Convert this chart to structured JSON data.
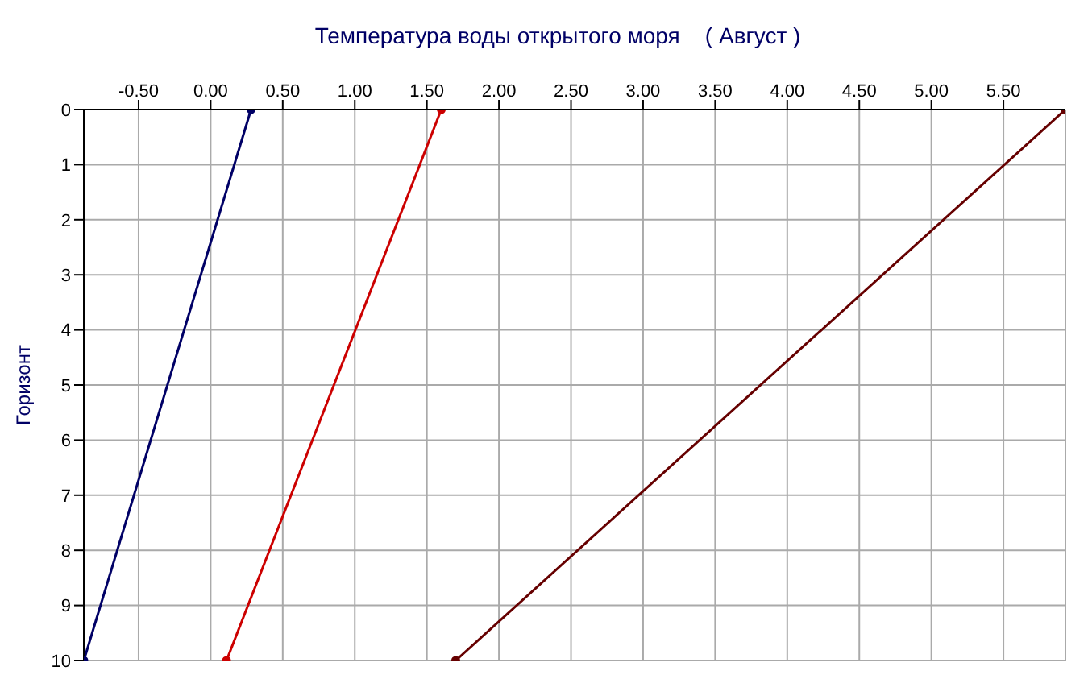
{
  "chart_data": {
    "type": "line",
    "title": "Температура воды открытого моря    ( Август )",
    "ylabel": "Горизонт",
    "series": [
      {
        "color": "#000066",
        "x": [
          0.28,
          -0.88
        ],
        "values": [
          0,
          10
        ]
      },
      {
        "color": "#cc0000",
        "x": [
          1.6,
          0.11
        ],
        "values": [
          0,
          10
        ]
      },
      {
        "color": "#660000",
        "x": [
          5.93,
          1.7
        ],
        "values": [
          0,
          10
        ]
      }
    ],
    "xlim": [
      -0.88,
      5.93
    ],
    "xticks": [
      {
        "value": -0.5,
        "label": "-0.50"
      },
      {
        "value": 0,
        "label": "0.00"
      },
      {
        "value": 0.5,
        "label": "0.50"
      },
      {
        "value": 1,
        "label": "1.00"
      },
      {
        "value": 1.5,
        "label": "1.50"
      },
      {
        "value": 2,
        "label": "2.00"
      },
      {
        "value": 2.5,
        "label": "2.50"
      },
      {
        "value": 3,
        "label": "3.00"
      },
      {
        "value": 3.5,
        "label": "3.50"
      },
      {
        "value": 4,
        "label": "4.00"
      },
      {
        "value": 4.5,
        "label": "4.50"
      },
      {
        "value": 5,
        "label": "5.00"
      },
      {
        "value": 5.5,
        "label": "5.50"
      }
    ],
    "ylim": [
      10,
      0
    ],
    "yticks": [
      0,
      1,
      2,
      3,
      4,
      5,
      6,
      7,
      8,
      9,
      10
    ],
    "grid": true,
    "legend": false,
    "marker": "circle",
    "line_style": "solid"
  }
}
